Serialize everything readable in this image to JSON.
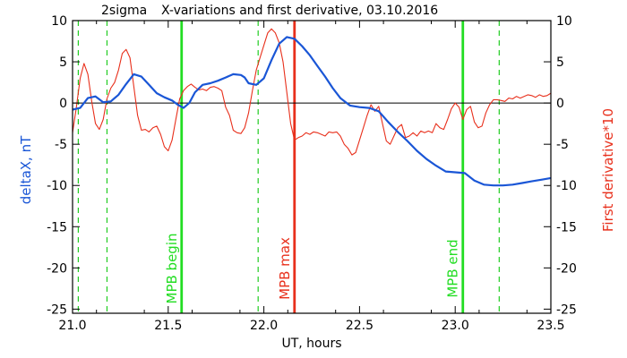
{
  "chart_data": {
    "type": "line",
    "title": "X-variations and first derivative, 03.10.2016",
    "corner_label": "2sigma",
    "xlabel": "UT, hours",
    "ylabel_left": "deltaX, nT",
    "ylabel_right": "First derivative*10",
    "xlim": [
      21.0,
      23.5
    ],
    "ylim": [
      -25.5,
      10
    ],
    "x_ticks": [
      "21.0",
      "21.5",
      "22.0",
      "22.5",
      "23.0",
      "23.5"
    ],
    "y_ticks": [
      "10",
      "5",
      "0",
      "-5",
      "-10",
      "-15",
      "-20",
      "-25"
    ],
    "grid": false,
    "zero_line": 0,
    "colors": {
      "deltaX": "#1a56d6",
      "derivative": "#e8301c",
      "mpb_begin_end": "#22dd22",
      "mpb_max": "#e8301c",
      "sigma": "#22cc22"
    },
    "series": [
      {
        "name": "deltaX, nT",
        "color": "#1a56d6",
        "x": [
          21.0,
          21.04,
          21.08,
          21.12,
          21.16,
          21.2,
          21.24,
          21.28,
          21.32,
          21.36,
          21.4,
          21.44,
          21.48,
          21.52,
          21.55,
          21.58,
          21.61,
          21.64,
          21.68,
          21.72,
          21.76,
          21.8,
          21.84,
          21.88,
          21.9,
          21.92,
          21.96,
          22.0,
          22.04,
          22.08,
          22.12,
          22.16,
          22.2,
          22.24,
          22.28,
          22.32,
          22.36,
          22.4,
          22.45,
          22.5,
          22.55,
          22.6,
          22.65,
          22.7,
          22.75,
          22.8,
          22.85,
          22.9,
          22.95,
          23.0,
          23.05,
          23.1,
          23.15,
          23.2,
          23.25,
          23.3,
          23.35,
          23.4,
          23.45,
          23.5
        ],
        "y": [
          -0.8,
          -0.6,
          0.6,
          0.8,
          0.1,
          0.2,
          1.0,
          2.3,
          3.5,
          3.2,
          2.2,
          1.2,
          0.7,
          0.3,
          -0.2,
          -0.6,
          0.0,
          1.3,
          2.2,
          2.4,
          2.7,
          3.1,
          3.5,
          3.4,
          3.1,
          2.4,
          2.2,
          3.0,
          5.2,
          7.2,
          8.0,
          7.8,
          6.9,
          5.8,
          4.5,
          3.2,
          1.8,
          0.6,
          -0.3,
          -0.5,
          -0.6,
          -1.0,
          -2.3,
          -3.5,
          -4.6,
          -5.8,
          -6.8,
          -7.6,
          -8.3,
          -8.4,
          -8.5,
          -9.4,
          -9.9,
          -10.0,
          -10.0,
          -9.9,
          -9.7,
          -9.5,
          -9.3,
          -9.1
        ]
      },
      {
        "name": "First derivative*10",
        "color": "#e8301c",
        "x": [
          21.0,
          21.02,
          21.04,
          21.06,
          21.08,
          21.1,
          21.12,
          21.14,
          21.16,
          21.18,
          21.2,
          21.22,
          21.24,
          21.26,
          21.28,
          21.3,
          21.32,
          21.34,
          21.36,
          21.38,
          21.4,
          21.42,
          21.44,
          21.46,
          21.48,
          21.5,
          21.52,
          21.54,
          21.56,
          21.58,
          21.6,
          21.62,
          21.64,
          21.66,
          21.68,
          21.7,
          21.72,
          21.74,
          21.76,
          21.78,
          21.8,
          21.82,
          21.84,
          21.86,
          21.88,
          21.9,
          21.92,
          21.94,
          21.96,
          21.98,
          22.0,
          22.02,
          22.04,
          22.06,
          22.08,
          22.1,
          22.12,
          22.14,
          22.16,
          22.18,
          22.2,
          22.22,
          22.24,
          22.26,
          22.28,
          22.3,
          22.32,
          22.34,
          22.36,
          22.38,
          22.4,
          22.42,
          22.44,
          22.46,
          22.48,
          22.5,
          22.52,
          22.54,
          22.56,
          22.58,
          22.6,
          22.62,
          22.64,
          22.66,
          22.68,
          22.7,
          22.72,
          22.74,
          22.76,
          22.78,
          22.8,
          22.82,
          22.84,
          22.86,
          22.88,
          22.9,
          22.92,
          22.94,
          22.96,
          22.98,
          23.0,
          23.02,
          23.04,
          23.06,
          23.08,
          23.1,
          23.12,
          23.14,
          23.16,
          23.18,
          23.2,
          23.22,
          23.24,
          23.26,
          23.28,
          23.3,
          23.32,
          23.34,
          23.36,
          23.38,
          23.4,
          23.42,
          23.44,
          23.46,
          23.48,
          23.5
        ],
        "y": [
          -3.6,
          -0.5,
          3.0,
          4.8,
          3.5,
          0.2,
          -2.5,
          -3.2,
          -2.0,
          0.5,
          1.8,
          2.5,
          4.0,
          6.0,
          6.5,
          5.5,
          2.0,
          -1.5,
          -3.3,
          -3.2,
          -3.5,
          -3.0,
          -2.8,
          -3.8,
          -5.3,
          -5.8,
          -4.5,
          -2.0,
          0.5,
          1.5,
          2.0,
          2.3,
          1.9,
          1.6,
          1.7,
          1.5,
          1.9,
          2.0,
          1.8,
          1.5,
          -0.5,
          -1.5,
          -3.3,
          -3.6,
          -3.7,
          -3.0,
          -1.2,
          1.5,
          4.0,
          5.5,
          7.0,
          8.5,
          9.0,
          8.5,
          7.3,
          5.0,
          1.3,
          -2.5,
          -4.5,
          -4.2,
          -4.0,
          -3.6,
          -3.8,
          -3.5,
          -3.6,
          -3.8,
          -4.0,
          -3.5,
          -3.6,
          -3.5,
          -4.0,
          -5.0,
          -5.5,
          -6.3,
          -6.0,
          -4.5,
          -3.0,
          -1.5,
          -0.2,
          -1.0,
          -0.4,
          -2.5,
          -4.6,
          -5.0,
          -4.0,
          -3.0,
          -2.6,
          -4.2,
          -4.0,
          -3.6,
          -4.0,
          -3.4,
          -3.6,
          -3.4,
          -3.6,
          -2.5,
          -3.0,
          -3.2,
          -2.0,
          -0.7,
          0.0,
          -0.5,
          -2.0,
          -0.8,
          -0.4,
          -2.3,
          -3.0,
          -2.8,
          -1.2,
          -0.2,
          0.4,
          0.4,
          0.3,
          0.2,
          0.6,
          0.5,
          0.8,
          0.6,
          0.8,
          1.0,
          0.9,
          0.7,
          1.0,
          0.8,
          0.9,
          1.2
        ]
      }
    ],
    "markers": {
      "mpb_begin": {
        "x": 21.57,
        "label": "MPB begin"
      },
      "mpb_max": {
        "x": 22.16,
        "label": "MPB max"
      },
      "mpb_end": {
        "x": 23.04,
        "label": "MPB end"
      },
      "sigma_lines": [
        21.03,
        21.18,
        21.97,
        23.23
      ]
    }
  }
}
